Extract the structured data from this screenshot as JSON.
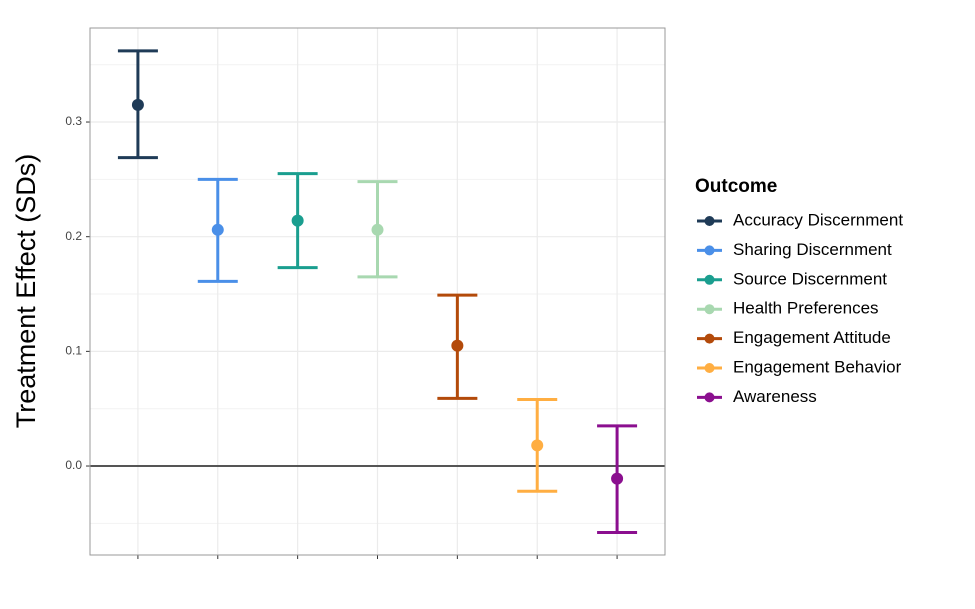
{
  "chart_data": {
    "type": "errorbar",
    "y_label": "Treatment Effect (SDs)",
    "legend_title": "Outcome",
    "ylim": [
      -0.0776,
      0.382
    ],
    "yticks": [
      {
        "value": 0,
        "label": "0.0"
      },
      0.1,
      0.2,
      0.3
    ],
    "minor_yticks": [
      -0.05,
      0.05,
      0.15,
      0.25,
      0.35
    ],
    "grid": true,
    "reference_line": 0,
    "legend": "right",
    "series": [
      {
        "name": "Accuracy Discernment",
        "color": "#1f3b57",
        "values": [
          0.315
        ],
        "lower": [
          0.269
        ],
        "upper": [
          0.362
        ]
      },
      {
        "name": "Sharing Discernment",
        "color": "#4a8fe8",
        "values": [
          0.206
        ],
        "lower": [
          0.161
        ],
        "upper": [
          0.25
        ]
      },
      {
        "name": "Source Discernment",
        "color": "#1a9e8f",
        "values": [
          0.214
        ],
        "lower": [
          0.173
        ],
        "upper": [
          0.255
        ]
      },
      {
        "name": "Health Preferences",
        "color": "#a8d8b0",
        "values": [
          0.206
        ],
        "lower": [
          0.165
        ],
        "upper": [
          0.248
        ]
      },
      {
        "name": "Engagement Attitude",
        "color": "#b34a0a",
        "values": [
          0.105
        ],
        "lower": [
          0.059
        ],
        "upper": [
          0.149
        ]
      },
      {
        "name": "Engagement Behavior",
        "color": "#ffae42",
        "values": [
          0.018
        ],
        "lower": [
          -0.022
        ],
        "upper": [
          0.058
        ]
      },
      {
        "name": "Awareness",
        "color": "#8b0f8f",
        "values": [
          -0.011
        ],
        "lower": [
          -0.058
        ],
        "upper": [
          0.035
        ]
      }
    ]
  }
}
